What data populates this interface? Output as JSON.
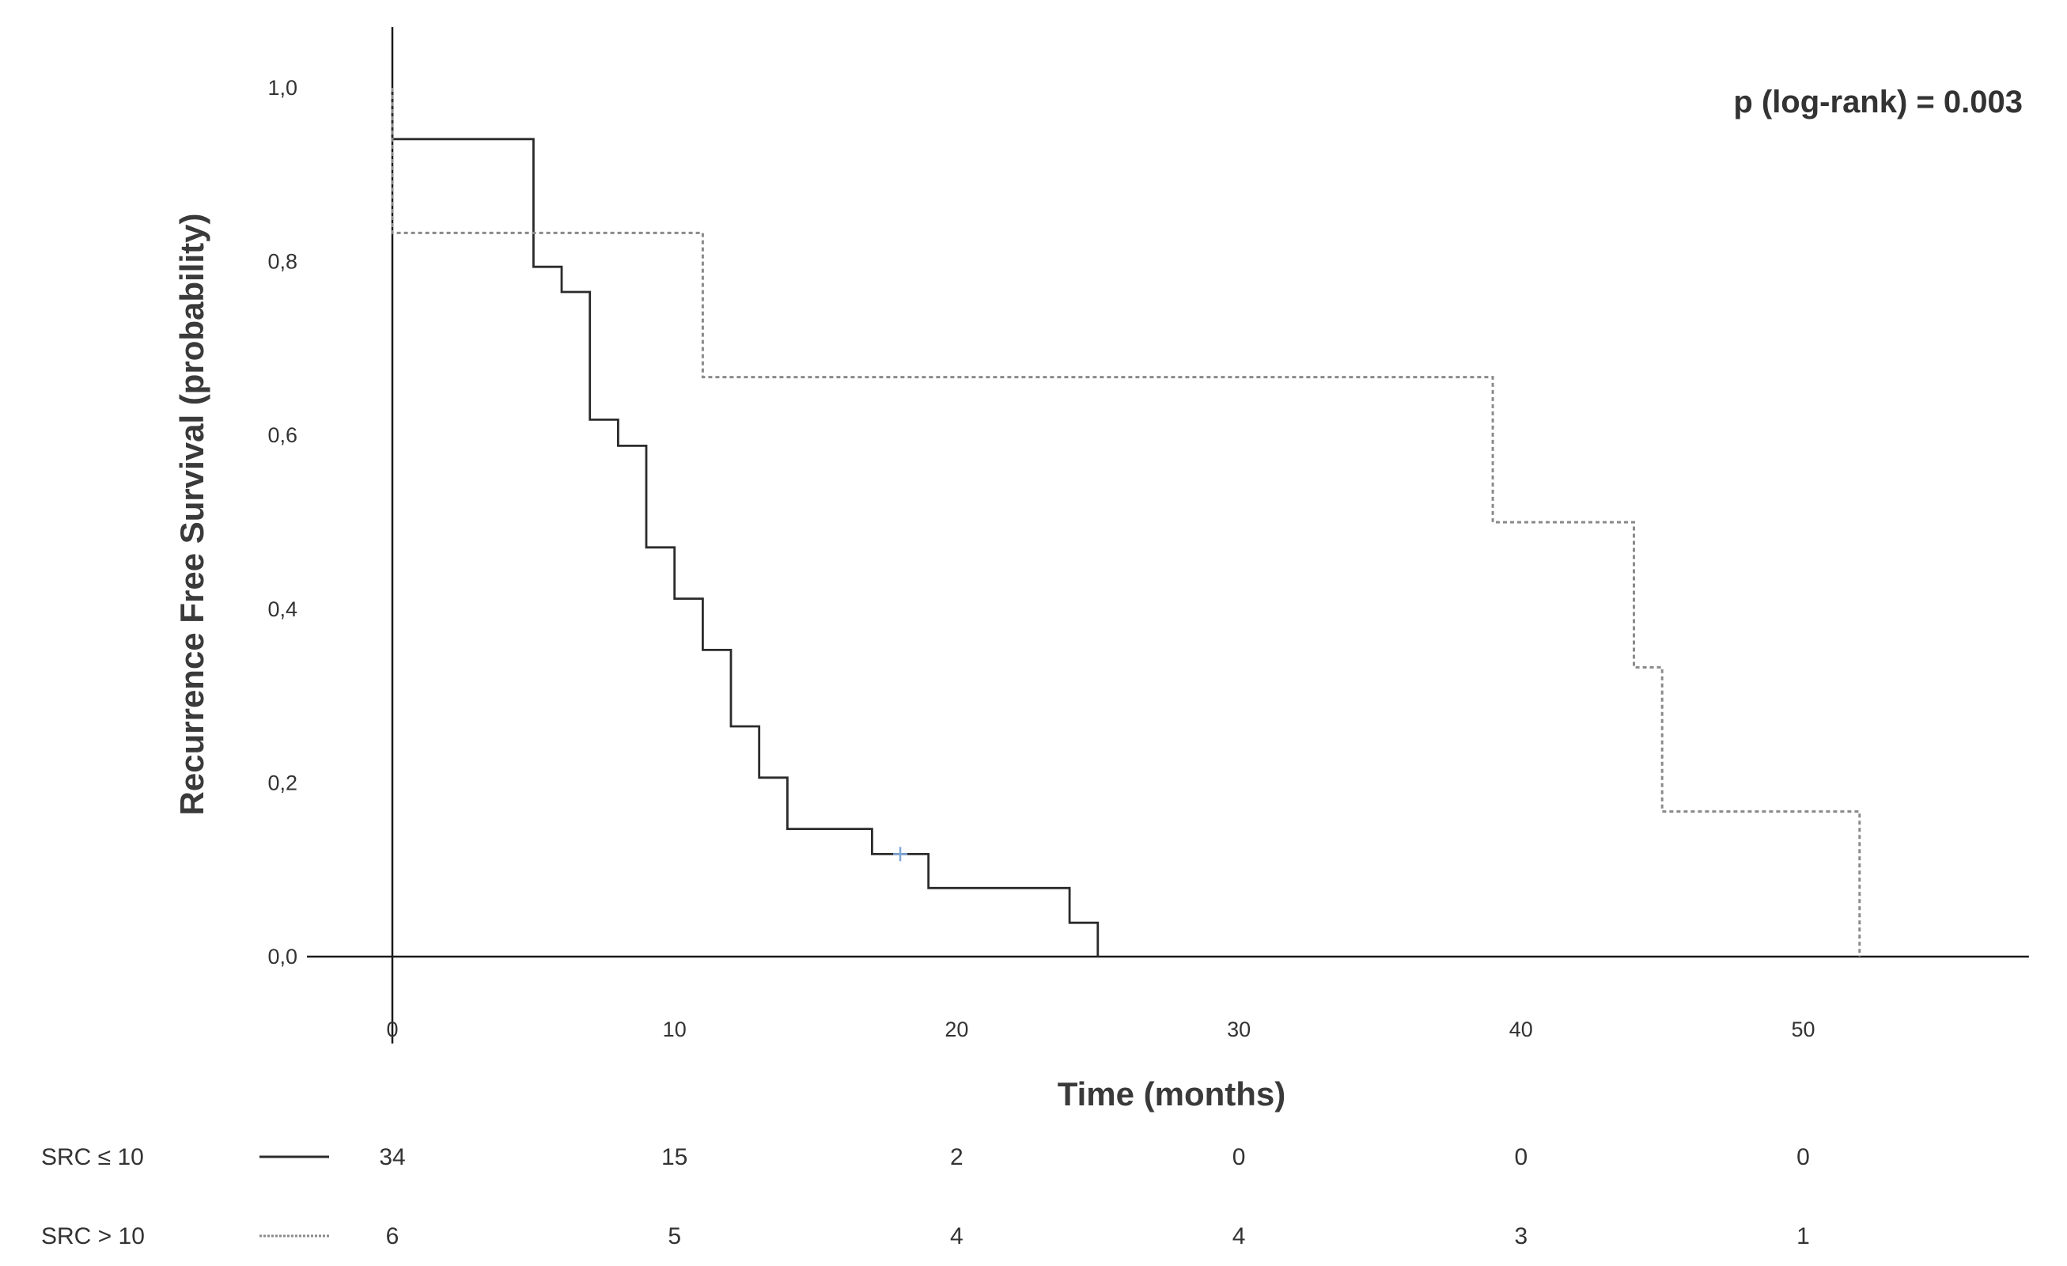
{
  "chart_data": {
    "type": "line",
    "subtype": "kaplan-meier step",
    "title": "",
    "xlabel": "Time (months)",
    "ylabel": "Recurrence Free Survival (probability)",
    "xlim": [
      -3,
      58
    ],
    "ylim": [
      -0.1,
      1.07
    ],
    "x_ticks": [
      0,
      10,
      20,
      30,
      40,
      50
    ],
    "x_tick_labels": [
      "0",
      "10",
      "20",
      "30",
      "40",
      "50"
    ],
    "y_ticks": [
      0,
      0.2,
      0.4,
      0.6,
      0.8,
      1.0
    ],
    "y_tick_labels": [
      "0,0",
      "0,2",
      "0,4",
      "0,6",
      "0,8",
      "1,0"
    ],
    "grid": false,
    "annotation": "p (log-rank) = 0.003",
    "series": [
      {
        "name": "SRC ≤ 10",
        "style": "solid",
        "color": "#2b2b2b",
        "steps": [
          [
            0,
            1.0
          ],
          [
            0,
            0.941
          ],
          [
            5,
            0.941
          ],
          [
            5,
            0.794
          ],
          [
            6,
            0.794
          ],
          [
            6,
            0.765
          ],
          [
            7,
            0.765
          ],
          [
            7,
            0.618
          ],
          [
            8,
            0.618
          ],
          [
            8,
            0.588
          ],
          [
            9,
            0.588
          ],
          [
            9,
            0.471
          ],
          [
            10,
            0.471
          ],
          [
            10,
            0.412
          ],
          [
            11,
            0.412
          ],
          [
            11,
            0.353
          ],
          [
            12,
            0.353
          ],
          [
            12,
            0.265
          ],
          [
            13,
            0.265
          ],
          [
            13,
            0.206
          ],
          [
            14,
            0.206
          ],
          [
            14,
            0.147
          ],
          [
            17,
            0.147
          ],
          [
            17,
            0.118
          ],
          [
            19,
            0.118
          ],
          [
            19,
            0.079
          ],
          [
            24,
            0.079
          ],
          [
            24,
            0.039
          ],
          [
            25,
            0.039
          ],
          [
            25,
            0.0
          ]
        ],
        "censored": [
          [
            18,
            0.118
          ]
        ]
      },
      {
        "name": "SRC > 10",
        "style": "dotted",
        "color": "#8a8a8a",
        "steps": [
          [
            0,
            1.0
          ],
          [
            0,
            0.833
          ],
          [
            11,
            0.833
          ],
          [
            11,
            0.667
          ],
          [
            39,
            0.667
          ],
          [
            39,
            0.5
          ],
          [
            44,
            0.5
          ],
          [
            44,
            0.333
          ],
          [
            45,
            0.333
          ],
          [
            45,
            0.167
          ],
          [
            52,
            0.167
          ],
          [
            52,
            0.0
          ]
        ],
        "censored": []
      }
    ],
    "risk_table": {
      "times": [
        0,
        10,
        20,
        30,
        40,
        50
      ],
      "rows": [
        {
          "label": "SRC ≤ 10",
          "style": "solid",
          "counts": [
            "34",
            "15",
            "2",
            "0",
            "0",
            "0"
          ]
        },
        {
          "label": "SRC > 10",
          "style": "dotted",
          "counts": [
            "6",
            "5",
            "4",
            "4",
            "3",
            "1"
          ]
        }
      ]
    }
  }
}
